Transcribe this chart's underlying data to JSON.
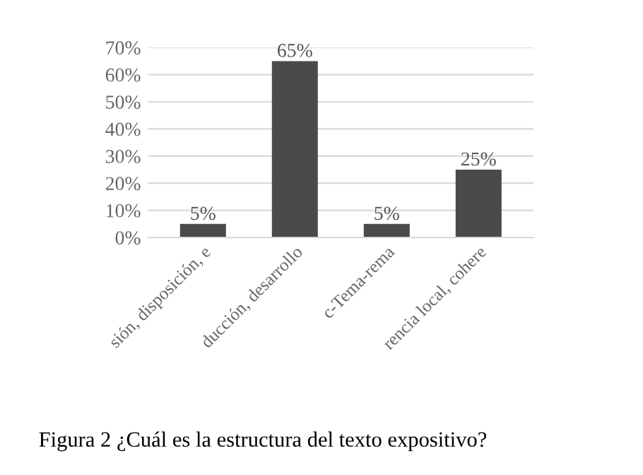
{
  "chart_data": {
    "type": "bar",
    "title": "Figura 2 ¿Cuál es la estructura del texto expositivo?",
    "categories": [
      "sión, disposición, e",
      "ducción, desarrollo",
      "c-Tema-rema",
      "rencia local, cohere"
    ],
    "values": [
      5,
      65,
      5,
      25
    ],
    "color": "#4a4a4a",
    "value_labels": [
      "5%",
      "65%",
      "5%",
      "25%"
    ],
    "ylim": [
      0,
      70
    ],
    "yticks": [
      {
        "value": 0,
        "label": "0%"
      },
      {
        "value": 10,
        "label": "10%"
      },
      {
        "value": 20,
        "label": "20%"
      },
      {
        "value": 30,
        "label": "30%"
      },
      {
        "value": 40,
        "label": "40%"
      },
      {
        "value": 50,
        "label": "50%"
      },
      {
        "value": 60,
        "label": "60%"
      },
      {
        "value": 70,
        "label": "70%"
      }
    ],
    "grid": "y",
    "legend": false
  }
}
